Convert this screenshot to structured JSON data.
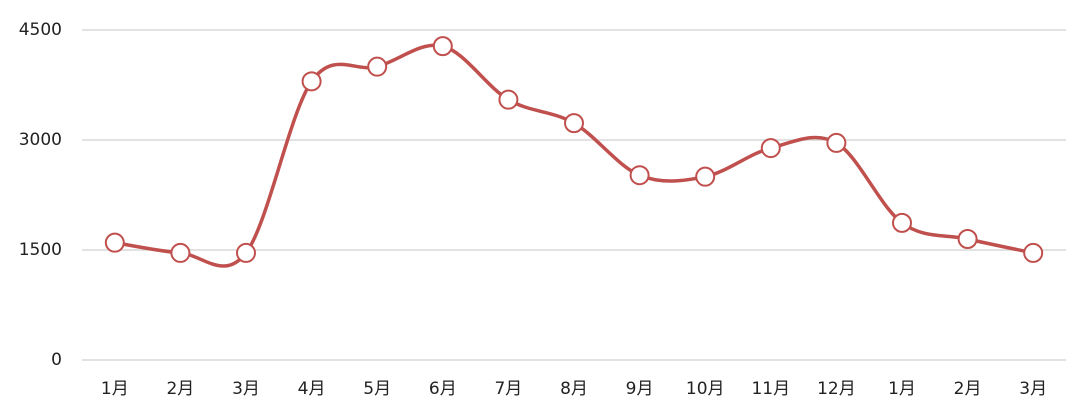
{
  "chart_data": {
    "type": "line",
    "categories": [
      "1月",
      "2月",
      "3月",
      "4月",
      "5月",
      "6月",
      "7月",
      "8月",
      "9月",
      "10月",
      "11月",
      "12月",
      "1月",
      "2月",
      "3月"
    ],
    "series": [
      {
        "color": "#c0504d",
        "values": [
          1600,
          1460,
          1460,
          3800,
          4000,
          4280,
          3550,
          3230,
          2520,
          2500,
          2890,
          2960,
          1870,
          1650,
          1460
        ]
      }
    ],
    "ylim": [
      0,
      4500
    ],
    "yticks": [
      0,
      1500,
      3000,
      4500
    ],
    "grid": true,
    "smooth": true
  }
}
